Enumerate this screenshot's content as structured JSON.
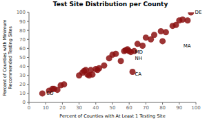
{
  "chart_data": {
    "type": "scatter",
    "title": "Test Site Distribution per County",
    "x_label": "Percent of Counties with At Least 1 Testing Site",
    "y_label": "Percent of Counties with Minimum\nRecommended Testing Sites",
    "x": [
      8,
      12,
      14,
      15,
      17,
      19,
      21,
      30,
      32,
      33,
      34,
      35,
      36,
      37,
      38,
      40,
      41,
      42,
      45,
      48,
      50,
      52,
      55,
      57,
      58,
      59,
      60,
      61,
      62,
      63,
      65,
      68,
      70,
      73,
      75,
      79,
      80,
      82,
      86,
      88,
      90,
      92,
      95,
      97
    ],
    "values": [
      10,
      13,
      15,
      15,
      14,
      19,
      20,
      30,
      33,
      35,
      36,
      31,
      30,
      36,
      31,
      37,
      36,
      38,
      41,
      49,
      53,
      54,
      46,
      57,
      58,
      59,
      57,
      56,
      34,
      57,
      65,
      63,
      72,
      70,
      75,
      79,
      68,
      78,
      85,
      86,
      91,
      92,
      91,
      100
    ],
    "color": "#8B1010",
    "xlim": [
      0,
      100
    ],
    "ylim": [
      0,
      100
    ],
    "xticks": [
      0,
      10,
      20,
      30,
      40,
      50,
      60,
      70,
      80,
      90,
      100
    ],
    "yticks": [
      0,
      10,
      20,
      30,
      40,
      50,
      60,
      70,
      80,
      90,
      100
    ],
    "grid": false,
    "annotations": [
      {
        "label": "CO",
        "x": 10,
        "y": 10
      },
      {
        "label": "CA",
        "x": 63,
        "y": 32
      },
      {
        "label": "MD",
        "x": 63,
        "y": 56
      },
      {
        "label": "NH",
        "x": 63,
        "y": 49
      },
      {
        "label": "MA",
        "x": 92,
        "y": 63
      },
      {
        "label": "DE",
        "x": 99,
        "y": 100
      }
    ]
  }
}
